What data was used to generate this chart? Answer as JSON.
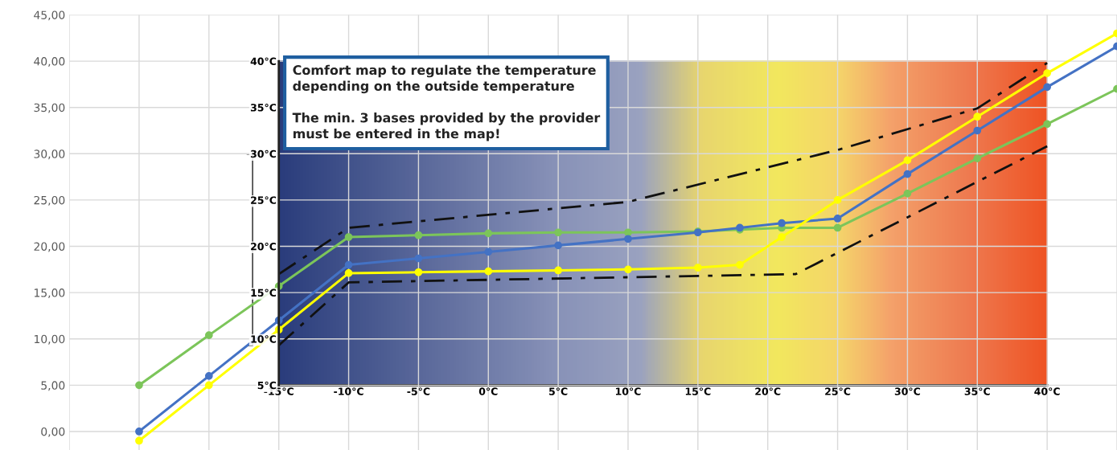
{
  "chart_data": {
    "type": "line",
    "x": [
      -25,
      -20,
      -15,
      -10,
      -5,
      0,
      5,
      10,
      15,
      18,
      21,
      25,
      30,
      35,
      40,
      45
    ],
    "series": [
      {
        "color": "#7cc55a",
        "marker": "circle",
        "values": [
          5.0,
          10.4,
          15.7,
          21.0,
          21.2,
          21.4,
          21.5,
          21.5,
          21.6,
          21.8,
          22.0,
          22.0,
          25.7,
          29.5,
          33.2,
          37.0
        ]
      },
      {
        "color": "#4472c4",
        "marker": "circle",
        "values": [
          0.0,
          6.0,
          12.0,
          18.0,
          18.7,
          19.4,
          20.1,
          20.8,
          21.5,
          22.0,
          22.5,
          23.0,
          27.8,
          32.5,
          37.2,
          41.6
        ]
      },
      {
        "color": "#ffff00",
        "marker": "circle",
        "values": [
          -1.0,
          5.0,
          11.0,
          17.1,
          17.2,
          17.3,
          17.4,
          17.5,
          17.7,
          18.0,
          21.0,
          25.0,
          29.3,
          34.0,
          38.7,
          43.0
        ]
      },
      {
        "color": "#111111",
        "marker": "none",
        "line_style": "dashed",
        "x": [
          -15,
          -10,
          10,
          25,
          35,
          40
        ],
        "values": [
          17.0,
          22.0,
          24.8,
          30.4,
          34.9,
          39.8
        ]
      },
      {
        "color": "#111111",
        "marker": "none",
        "line_style": "dashed",
        "x": [
          -15,
          -10,
          22,
          40
        ],
        "values": [
          9.3,
          16.1,
          17.0,
          30.8
        ]
      }
    ],
    "xlim": [
      -30,
      45
    ],
    "xticks": [
      {
        "value": -30,
        "label": null
      },
      {
        "value": -25,
        "label": null
      },
      {
        "value": -20,
        "label": null
      },
      {
        "value": -15,
        "label": "-15°C"
      },
      {
        "value": -10,
        "label": "-10°C"
      },
      {
        "value": -5,
        "label": "-5°C"
      },
      {
        "value": 0,
        "label": "0°C"
      },
      {
        "value": 5,
        "label": "5°C"
      },
      {
        "value": 10,
        "label": "10°C"
      },
      {
        "value": 15,
        "label": "15°C"
      },
      {
        "value": 20,
        "label": "20°C"
      },
      {
        "value": 25,
        "label": "25°C"
      },
      {
        "value": 30,
        "label": "30°C"
      },
      {
        "value": 35,
        "label": "35°C"
      },
      {
        "value": 40,
        "label": "40°C"
      },
      {
        "value": 45,
        "label": null
      }
    ],
    "ylim": [
      -2,
      45
    ],
    "yticks": [
      {
        "value": 0,
        "label": "0,00"
      },
      {
        "value": 5,
        "label": "5,00"
      },
      {
        "value": 10,
        "label": "10,00"
      },
      {
        "value": 15,
        "label": "15,00"
      },
      {
        "value": 20,
        "label": "20,00"
      },
      {
        "value": 25,
        "label": "25,00"
      },
      {
        "value": 30,
        "label": "30,00"
      },
      {
        "value": 35,
        "label": "35,00"
      },
      {
        "value": 40,
        "label": "40,00"
      },
      {
        "value": 45,
        "label": "45,00"
      }
    ],
    "y2lim": [
      -2,
      45
    ],
    "y2ticks": [
      {
        "value": 5,
        "label": "5°C"
      },
      {
        "value": 10,
        "label": "10°C"
      },
      {
        "value": 15,
        "label": "15°C"
      },
      {
        "value": 20,
        "label": "20°C"
      },
      {
        "value": 25,
        "label": "25°C"
      },
      {
        "value": 30,
        "label": "30°C"
      },
      {
        "value": 35,
        "label": "35°C"
      },
      {
        "value": 40,
        "label": "40°C"
      }
    ],
    "grid": true,
    "annotations": [
      "Comfort map to regulate the temperature\ndepending on the outside temperature",
      "The min. 3 bases provided by the provider\nmust be entered in the map!"
    ]
  }
}
